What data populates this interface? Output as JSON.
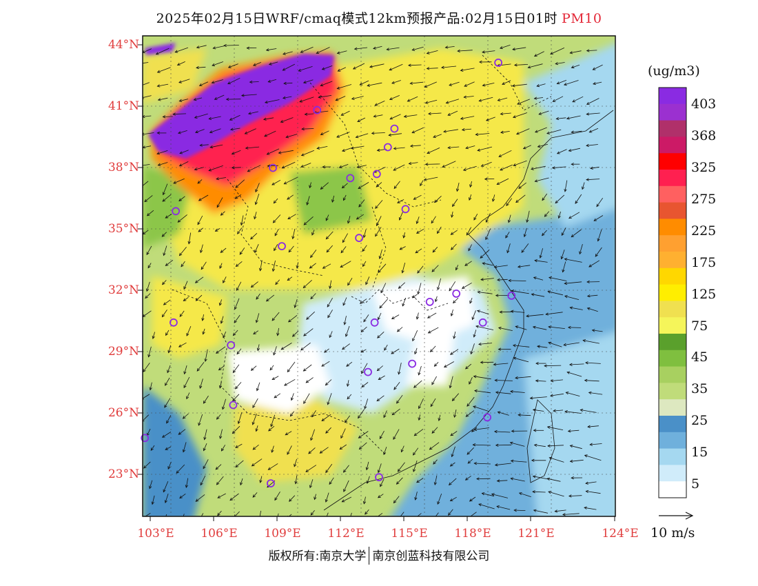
{
  "header": {
    "title": "2025年02月15日WRF/cmaq模式12km预报产品:02月15日01时",
    "species": "PM10"
  },
  "axes": {
    "lat_labels": [
      "44°N",
      "41°N",
      "38°N",
      "35°N",
      "32°N",
      "29°N",
      "26°N",
      "23°N"
    ],
    "lon_labels": [
      "103°E",
      "106°E",
      "109°E",
      "112°E",
      "115°E",
      "118°E",
      "121°E",
      "124°E"
    ]
  },
  "colorbar": {
    "unit": "(ug/m3)",
    "labels": [
      "403",
      "368",
      "325",
      "275",
      "225",
      "175",
      "125",
      "75",
      "45",
      "35",
      "25",
      "15",
      "5"
    ],
    "colors": [
      "#8a2be2",
      "#9b30d0",
      "#b0306a",
      "#cc1a66",
      "#ff0000",
      "#ff2050",
      "#ff6060",
      "#e85530",
      "#ff8c00",
      "#ffa030",
      "#ffb030",
      "#ffd700",
      "#ffee00",
      "#f0e050",
      "#f5f55a",
      "#5aa02c",
      "#7fbf3f",
      "#a8d060",
      "#c0dc7a",
      "#dde8c0",
      "#4a90c8",
      "#6fb0dc",
      "#a5d8f0",
      "#d0ecfa",
      "#ffffff"
    ]
  },
  "wind_ref": {
    "label": "10 m/s"
  },
  "footer": {
    "copyright_left": "版权所有:南京大学",
    "copyright_right": "南京创蓝科技有限公司"
  },
  "map": {
    "colors": {
      "very_high": "#8a2be2",
      "high": "#ff2050",
      "orange": "#ff8c00",
      "yellow": "#f5e84a",
      "green": "#8cc64a",
      "light_green": "#c0dc7a",
      "blue": "#4a90c8",
      "light_blue": "#a5d8f0",
      "white": "#ffffff"
    },
    "city_markers": [
      [
        118.7,
        43.2
      ],
      [
        110.5,
        40.9
      ],
      [
        114.0,
        40.0
      ],
      [
        113.7,
        39.1
      ],
      [
        108.5,
        38.1
      ],
      [
        112.0,
        37.6
      ],
      [
        113.2,
        37.8
      ],
      [
        114.5,
        36.1
      ],
      [
        104.1,
        36.0
      ],
      [
        112.4,
        34.7
      ],
      [
        108.9,
        34.3
      ],
      [
        115.6,
        31.6
      ],
      [
        116.8,
        32.0
      ],
      [
        119.3,
        31.9
      ],
      [
        104.0,
        30.6
      ],
      [
        106.6,
        29.5
      ],
      [
        113.1,
        30.6
      ],
      [
        118.0,
        30.6
      ],
      [
        112.8,
        28.2
      ],
      [
        114.8,
        28.6
      ],
      [
        106.7,
        26.6
      ],
      [
        118.2,
        26.0
      ],
      [
        102.7,
        25.0
      ],
      [
        108.4,
        22.8
      ],
      [
        113.3,
        23.1
      ]
    ]
  }
}
